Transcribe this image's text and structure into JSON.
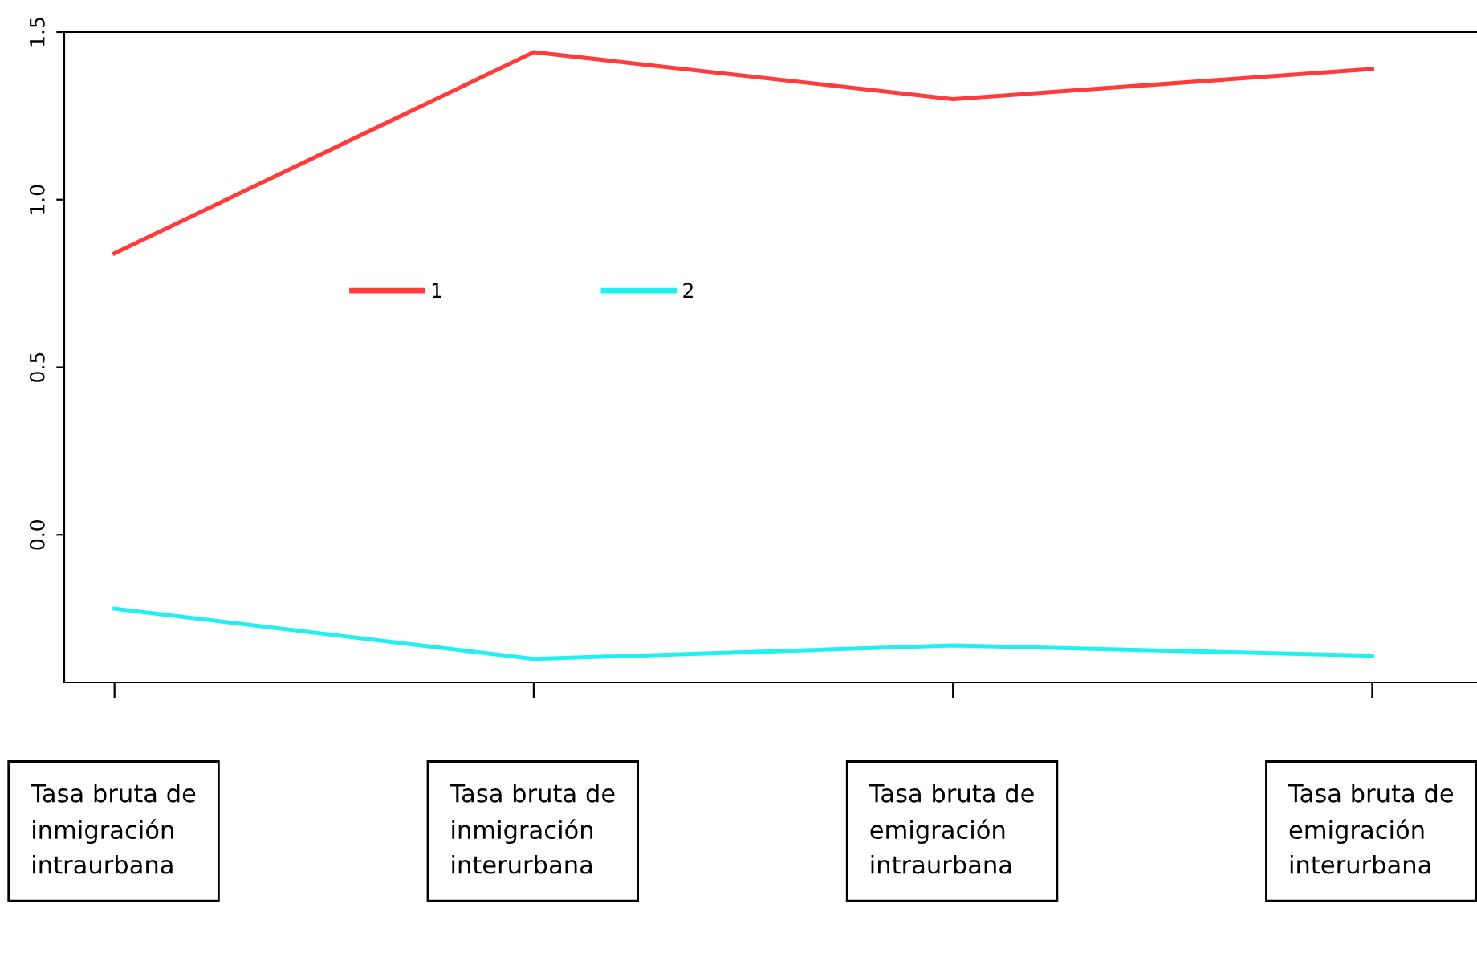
{
  "chart_data": {
    "type": "line",
    "categories": [
      "Tasa bruta de inmigración intraurbana",
      "Tasa bruta de inmigración interurbana",
      "Tasa bruta de emigración intraurbana",
      "Tasa bruta de emigración interurbana"
    ],
    "series": [
      {
        "name": "1",
        "color": "#ff3b3b",
        "values": [
          0.84,
          1.44,
          1.3,
          1.39
        ]
      },
      {
        "name": "2",
        "color": "#22f0f0",
        "values": [
          -0.22,
          -0.37,
          -0.33,
          -0.36
        ]
      }
    ],
    "ylim": [
      -0.44,
      1.5
    ],
    "yticks": [
      {
        "value": 0,
        "label": "0.0"
      },
      {
        "value": 0.5,
        "label": "0.5"
      },
      {
        "value": 1,
        "label": "1.0"
      },
      {
        "value": 1.5,
        "label": "1.5"
      }
    ],
    "grid": false,
    "legend": "center",
    "marker": "none",
    "line_style": "solid"
  }
}
